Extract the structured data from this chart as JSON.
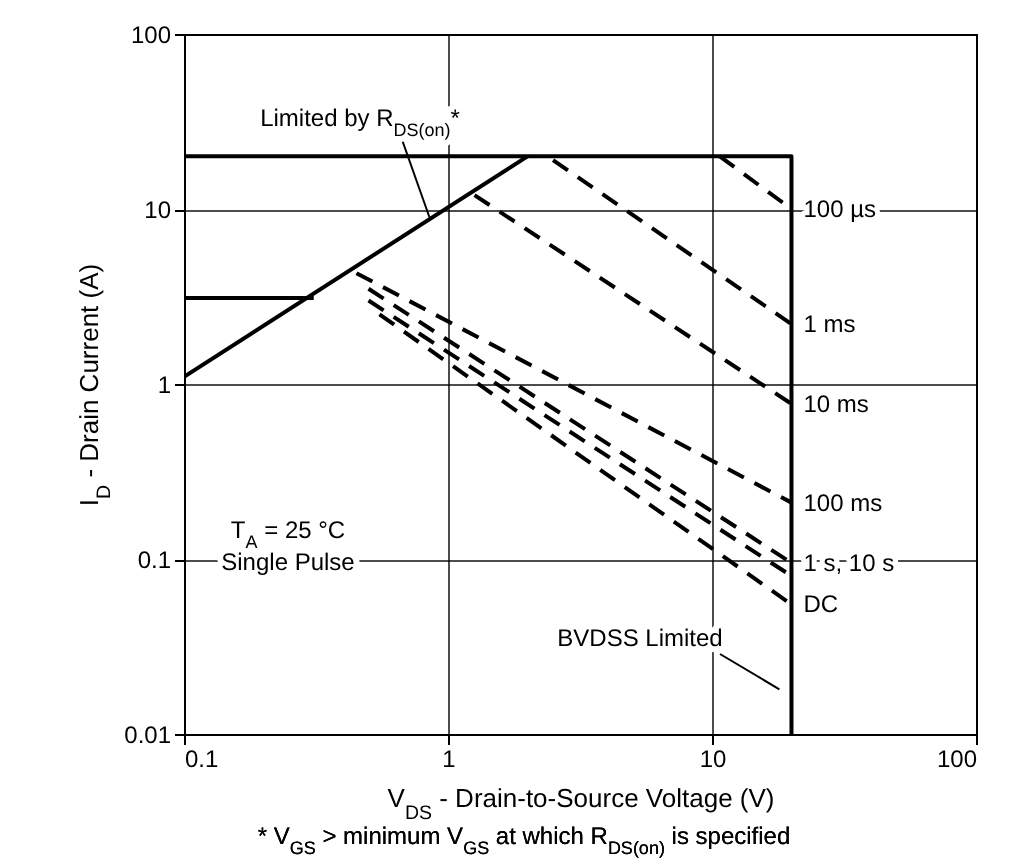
{
  "chart_data": {
    "type": "line",
    "xlabel": "V$_{DS}$ - Drain-to-Source Voltage (V)",
    "ylabel": "I$_{D}$ - Drain Current (A)",
    "log": "xy",
    "grid": true,
    "xlim": [
      0.1,
      100
    ],
    "xticks": [
      0.1,
      1,
      10,
      100
    ],
    "ylim": [
      0.01,
      100
    ],
    "yticks": [
      0.01,
      0.1,
      1,
      10,
      100
    ],
    "series": [
      {
        "color": "#000000",
        "line_style": "solid",
        "x": [
          0.1,
          2
        ],
        "values": [
          1.1,
          20
        ]
      },
      {
        "color": "#000000",
        "line_style": "solid",
        "x": [
          0.1,
          20,
          20
        ],
        "values": [
          20,
          20,
          0.01
        ]
      },
      {
        "color": "#000000",
        "line_style": "solid",
        "x": [
          0.1,
          0.31
        ],
        "values": [
          3.1,
          3.1
        ]
      },
      {
        "name": "100 µs",
        "color": "#000000",
        "line_style": "dashed",
        "x": [
          10.7,
          20
        ],
        "values": [
          20,
          10
        ]
      },
      {
        "name": "1 ms",
        "color": "#000000",
        "line_style": "dashed",
        "x": [
          2.5,
          20
        ],
        "values": [
          19,
          2.2
        ]
      },
      {
        "name": "10 ms",
        "color": "#000000",
        "line_style": "dashed",
        "x": [
          1.26,
          20
        ],
        "values": [
          12,
          0.77
        ]
      },
      {
        "name": "100 ms",
        "color": "#000000",
        "line_style": "dashed",
        "x": [
          0.45,
          20
        ],
        "values": [
          4.3,
          0.21
        ]
      },
      {
        "name": "1 s, 10 s",
        "color": "#000000",
        "line_style": "dashed",
        "x": [
          0.5,
          20
        ],
        "values": [
          3.5,
          0.095
        ]
      },
      {
        "color": "#000000",
        "line_style": "dashed",
        "x": [
          0.5,
          20
        ],
        "values": [
          3.0,
          0.08
        ]
      },
      {
        "name": "DC",
        "color": "#000000",
        "line_style": "dashed",
        "x": [
          0.55,
          20
        ],
        "values": [
          2.5,
          0.055
        ]
      }
    ],
    "annotations": [
      {
        "text": "Limited by R$_{DS(on)}$*",
        "x": 0.85,
        "y": 9
      },
      "T$_{A}$ = 25 °C",
      "Single Pulse",
      {
        "text": "BVDSS Limited",
        "x": 18,
        "y": 0.018
      },
      "* V$_{GS}$ > minimum V$_{GS}$ at which R$_{DS(on)}$ is specified"
    ]
  }
}
